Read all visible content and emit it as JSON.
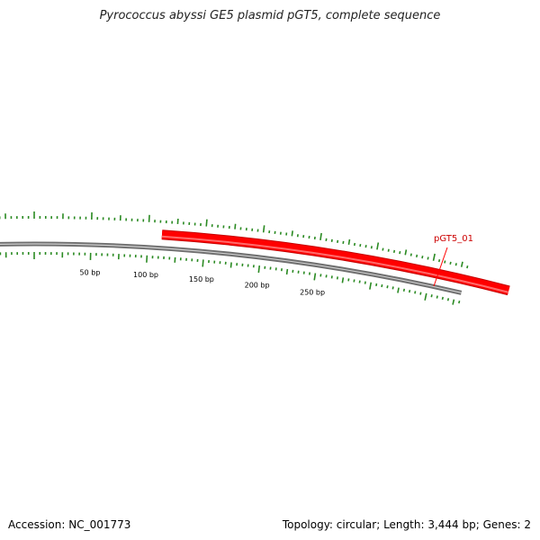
{
  "title": "Pyrococcus abyssi GE5 plasmid pGT5, complete sequence",
  "footer": {
    "accession": "Accession: NC_001773",
    "summary": "Topology: circular; Length: 3,444 bp; Genes: 2"
  },
  "colors": {
    "backbone": "#8a8a8a",
    "ticks": "#2a8a22",
    "gene": "#ff0000",
    "gene_label": "#cc0000"
  },
  "map": {
    "length_bp": 3444,
    "topology": "circular",
    "bp_labels": [
      {
        "pos": 50,
        "text": "50 bp"
      },
      {
        "pos": 100,
        "text": "100 bp"
      },
      {
        "pos": 150,
        "text": "150 bp"
      },
      {
        "pos": 200,
        "text": "200 bp"
      },
      {
        "pos": 250,
        "text": "250 bp"
      }
    ],
    "genes": [
      {
        "name": "pGT5_01",
        "start": 112,
        "label": "pGT5_01"
      }
    ]
  }
}
